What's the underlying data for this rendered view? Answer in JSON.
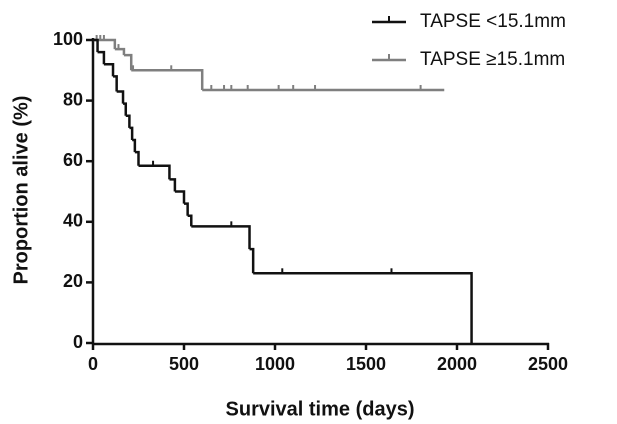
{
  "chart_data": {
    "type": "survival-step",
    "x_label": "Survival time (days)",
    "y_label": "Proportion alive (%)",
    "xlim": [
      0,
      2500
    ],
    "xticks": [
      0,
      500,
      1000,
      1500,
      2000,
      2500
    ],
    "ylim": [
      0,
      100
    ],
    "yticks": [
      0,
      20,
      40,
      60,
      80,
      100
    ],
    "series": [
      {
        "name": "TAPSE <15.1mm",
        "color": "#111111",
        "x": [
          0,
          25,
          60,
          110,
          130,
          165,
          180,
          200,
          215,
          230,
          250,
          420,
          450,
          500,
          520,
          540,
          860,
          880,
          2080
        ],
        "values": [
          100,
          96,
          92,
          88,
          83,
          79,
          75,
          71,
          67,
          63,
          58.5,
          54,
          50,
          46,
          42,
          38.5,
          31,
          23,
          0
        ],
        "censored": {
          "x": [
            330,
            760,
            1040,
            1640
          ],
          "values": [
            58.5,
            38.5,
            23,
            23
          ]
        }
      },
      {
        "name": "TAPSE ≥15.1mm",
        "color": "#7f7f7f",
        "x": [
          0,
          120,
          170,
          210,
          600,
          1930
        ],
        "values": [
          100,
          97,
          95,
          90,
          83.5,
          83.5
        ],
        "censored": {
          "x": [
            20,
            40,
            60,
            140,
            220,
            430,
            650,
            720,
            760,
            850,
            1020,
            1100,
            1220,
            1800
          ],
          "values": [
            100,
            100,
            100,
            97,
            90,
            90,
            83.5,
            83.5,
            83.5,
            83.5,
            83.5,
            83.5,
            83.5,
            83.5
          ]
        }
      }
    ]
  }
}
